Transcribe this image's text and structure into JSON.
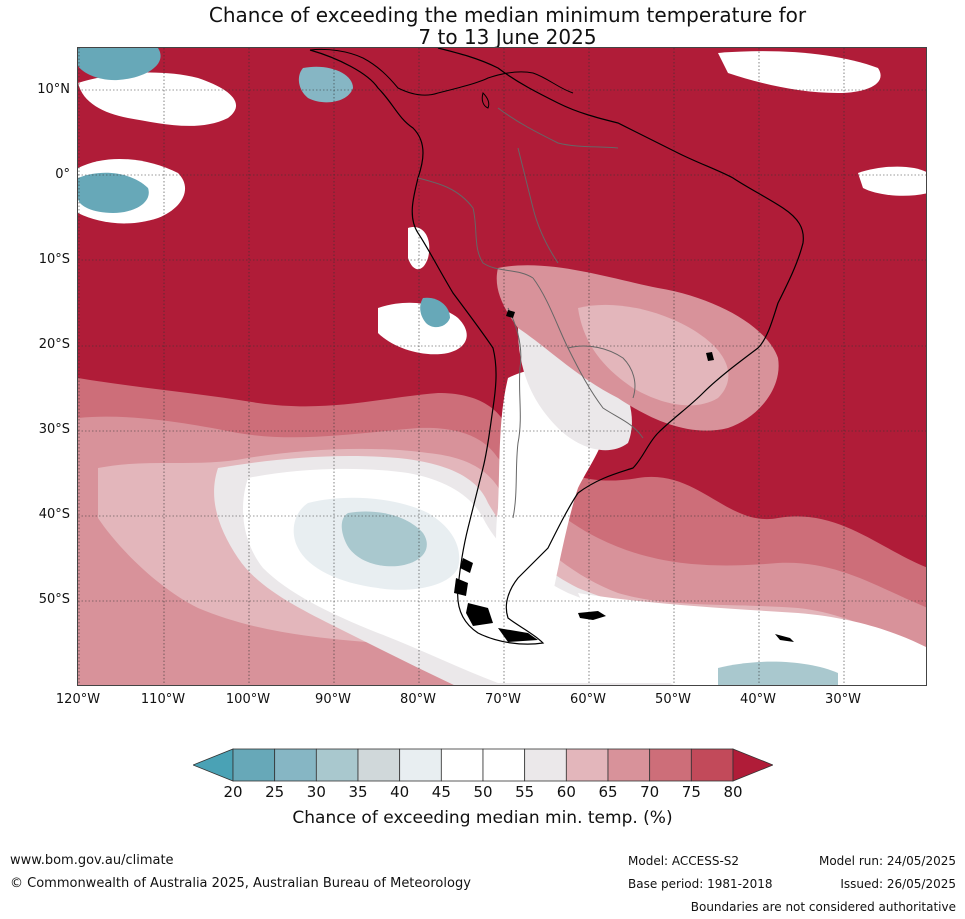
{
  "title": {
    "line1": "Chance of exceeding the median minimum temperature for",
    "line2": "7 to 13 June 2025"
  },
  "map": {
    "lat_labels": [
      "10°N",
      "0°",
      "10°S",
      "20°S",
      "30°S",
      "40°S",
      "50°S"
    ],
    "lon_labels": [
      "120°W",
      "110°W",
      "100°W",
      "90°W",
      "80°W",
      "70°W",
      "60°W",
      "50°W",
      "40°W",
      "30°W"
    ],
    "colors": {
      "dark_red": "#b01c38",
      "red_75": "#c24a5a",
      "red_70": "#cd6e79",
      "red_65": "#d8929a",
      "red_60": "#e3b6bb",
      "grey_55": "#ebe8ea",
      "white": "#ffffff",
      "light_40": "#e8eef1",
      "grey_35": "#d0d8da",
      "teal_30": "#a9c8ce",
      "teal_25": "#86b6c4",
      "teal_20": "#67a8b8",
      "teal_dark": "#4aa2b5"
    }
  },
  "colorbar": {
    "ticks": [
      "20",
      "25",
      "30",
      "35",
      "40",
      "45",
      "50",
      "55",
      "60",
      "65",
      "70",
      "75",
      "80"
    ],
    "colors": [
      "#4aa2b5",
      "#67a8b8",
      "#86b6c4",
      "#a9c8ce",
      "#d0d8da",
      "#e8eef1",
      "#ffffff",
      "#ffffff",
      "#ebe8ea",
      "#e3b6bb",
      "#d8929a",
      "#cd6e79",
      "#c24a5a",
      "#b01c38"
    ],
    "label": "Chance of exceeding median min. temp. (%)"
  },
  "footer": {
    "website": "www.bom.gov.au/climate",
    "copyright": "© Commonwealth of Australia 2025, Australian Bureau of Meteorology",
    "model": "Model: ACCESS-S2",
    "base_period": "Base period: 1981-2018",
    "model_run": "Model run: 24/05/2025",
    "issued": "Issued: 26/05/2025",
    "boundaries": "Boundaries are not considered authoritative"
  }
}
